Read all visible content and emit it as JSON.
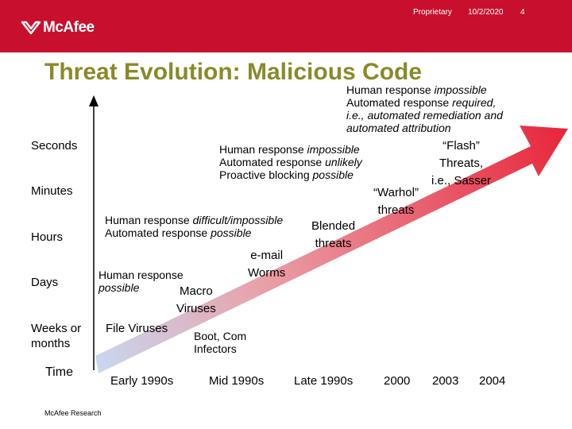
{
  "header": {
    "brand": "McAfee",
    "classification": "Proprietary",
    "date": "10/2/2020",
    "page_number": "4",
    "brand_color": "#c8102e"
  },
  "title": "Threat Evolution: Malicious Code",
  "y_axis_labels": [
    "Seconds",
    "Minutes",
    "Hours",
    "Days",
    "Weeks or months",
    "Time"
  ],
  "x_axis_labels": [
    "Early 1990s",
    "Mid 1990s",
    "Late 1990s",
    "2000",
    "2003",
    "2004"
  ],
  "threats": [
    {
      "line1": "File Viruses",
      "line2": ""
    },
    {
      "line1": "Macro",
      "line2": "Viruses"
    },
    {
      "line1": "e-mail",
      "line2": "Worms"
    },
    {
      "line1": "Blended",
      "line2": "threats"
    },
    {
      "line1": "“Warhol”",
      "line2": "threats"
    },
    {
      "line1": "“Flash”",
      "line2": "Threats,",
      "line3": "i.e., Sasser"
    }
  ],
  "responses": {
    "boot": {
      "line1": "Boot, Com",
      "line2": "Infectors"
    },
    "macro": {
      "line1_a": "Human response",
      "line2_em": "possible"
    },
    "blended": {
      "line1_a": "Human response ",
      "line1_em": "difficult/impossible",
      "line2_a": "Automated response ",
      "line2_em": "possible"
    },
    "warhol": {
      "line1_a": "Human response ",
      "line1_em": "impossible",
      "line2_a": "Automated response ",
      "line2_em": "unlikely",
      "line3_a": "Proactive blocking ",
      "line3_em": "possible"
    },
    "flash": {
      "line1_a": "Human response ",
      "line1_em": "impossible",
      "line2_a": "Automated response ",
      "line2_em": "required,",
      "line3_em": "i.e., automated remediation and",
      "line4_em": "automated attribution"
    }
  },
  "footer": "McAfee Research",
  "colors": {
    "arrow_start": "#c8d8f0",
    "arrow_end": "#e8253a",
    "title": "#8a8a2a"
  }
}
